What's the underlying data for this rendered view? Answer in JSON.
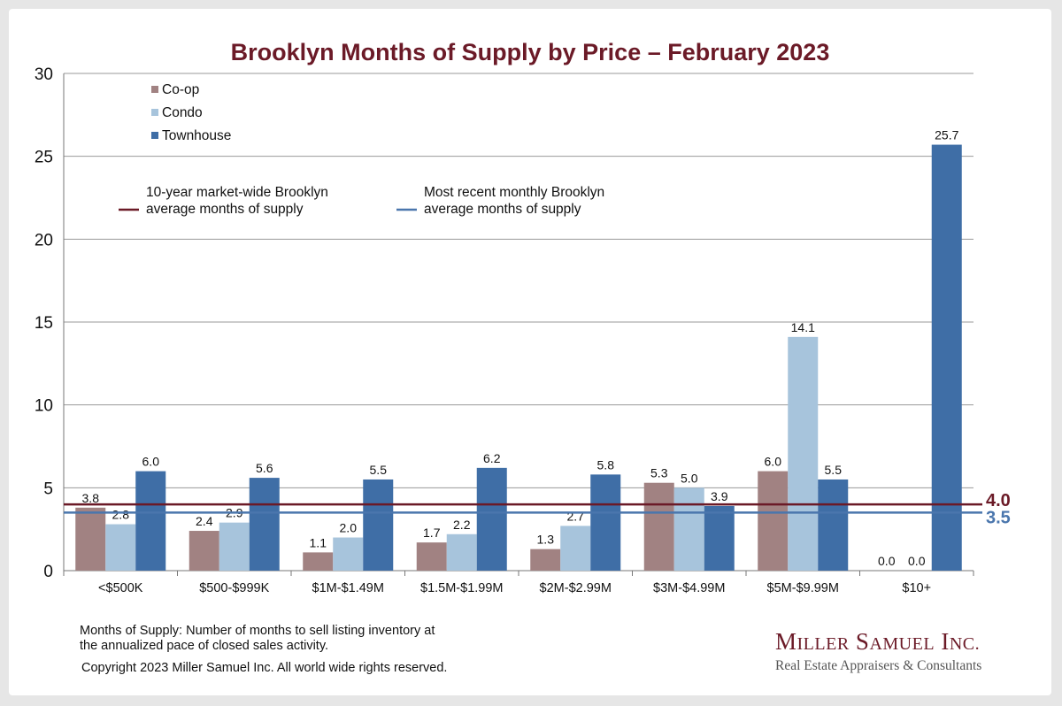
{
  "chart_data": {
    "type": "bar",
    "title": "Brooklyn Months of Supply by Price – February 2023",
    "categories": [
      "<$500K",
      "$500-$999K",
      "$1M-$1.49M",
      "$1.5M-$1.99M",
      "$2M-$2.99M",
      "$3M-$4.99M",
      "$5M-$9.99M",
      "$10+"
    ],
    "series": [
      {
        "name": "Co-op",
        "color": "#a18282",
        "values": [
          3.8,
          2.4,
          1.1,
          1.7,
          1.3,
          5.3,
          6.0,
          0.0
        ]
      },
      {
        "name": "Condo",
        "color": "#a7c4dc",
        "values": [
          2.8,
          2.9,
          2.0,
          2.2,
          2.7,
          5.0,
          14.1,
          0.0
        ]
      },
      {
        "name": "Townhouse",
        "color": "#3f6ea6",
        "values": [
          6.0,
          5.6,
          5.5,
          6.2,
          5.8,
          3.9,
          5.5,
          25.7
        ]
      }
    ],
    "data_labels": [
      [
        "3.8",
        "2.4",
        "1.1",
        "1.7",
        "1.3",
        "5.3",
        "6.0",
        "0.0"
      ],
      [
        "2.8",
        "2.9",
        "2.0",
        "2.2",
        "2.7",
        "5.0",
        "14.1",
        "0.0"
      ],
      [
        "6.0",
        "5.6",
        "5.5",
        "6.2",
        "5.8",
        "3.9",
        "5.5",
        "25.7"
      ]
    ],
    "ylim": [
      0,
      30
    ],
    "yticks": [
      0,
      5,
      10,
      15,
      20,
      25,
      30
    ],
    "grid": true,
    "legend_position": "top-left",
    "reference_lines": [
      {
        "label_lines": [
          "10-year market-wide Brooklyn",
          "average months of supply"
        ],
        "value": 4.0,
        "value_label": "4.0",
        "color": "#6b1a27"
      },
      {
        "label_lines": [
          "Most recent monthly Brooklyn",
          "average months of supply"
        ],
        "value": 3.5,
        "value_label": "3.5",
        "color": "#4a76ad"
      }
    ]
  },
  "footer": {
    "note_line1": "Months of Supply: Number of months to sell listing inventory at",
    "note_line2": "the annualized pace of closed sales activity.",
    "copyright": "Copyright 2023 Miller Samuel Inc.  All world wide rights reserved."
  },
  "brand": {
    "name_m": "M",
    "name_iller": "ILLER",
    "name_s": "S",
    "name_amuel": "AMUEL",
    "name_inc": "I",
    "name_nc": "NC.",
    "tagline": "Real Estate Appraisers & Consultants"
  }
}
